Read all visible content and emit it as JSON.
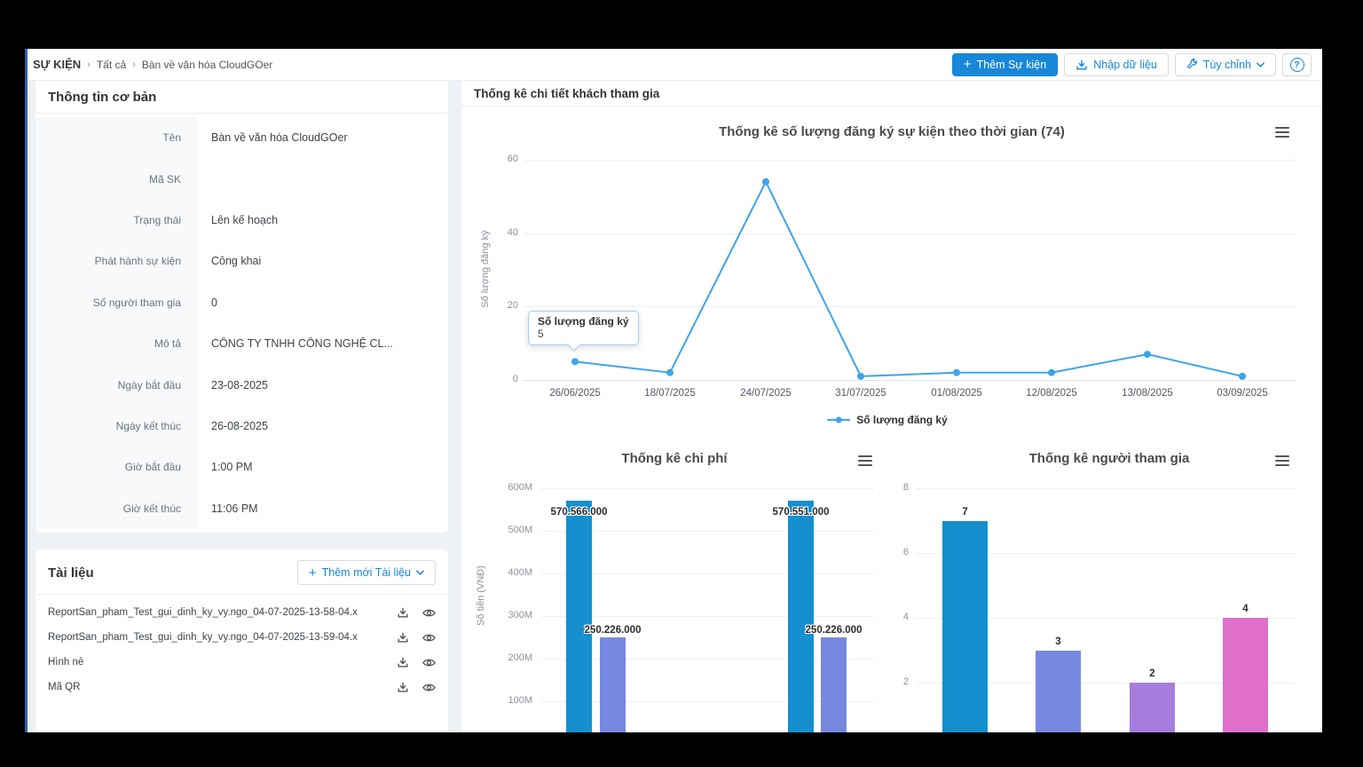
{
  "colors": {
    "primary": "#1787d9",
    "line_series": "#3da4ec",
    "bar_blue": "#158fce",
    "bar_periwinkle": "#7688e0",
    "bar_purple": "#a67ddd",
    "bar_pink": "#df6fcb",
    "icon_gray": "#555555",
    "sidebar_strip": "#2e5fae"
  },
  "breadcrumb": {
    "root": "SỰ KIỆN",
    "items": [
      "Tất cả",
      "Bàn về văn hóa CloudGOer"
    ]
  },
  "toolbar": {
    "add_event_label": "Thêm Sự kiện",
    "import_label": "Nhập dữ liệu",
    "customize_label": "Tùy chỉnh",
    "help_label": "?"
  },
  "info_panel": {
    "title": "Thông tin cơ bản",
    "fields": [
      {
        "label": "Tên",
        "value": "Bàn về văn hóa CloudGOer"
      },
      {
        "label": "Mã SK",
        "value": ""
      },
      {
        "label": "Trạng thái",
        "value": "Lên kế hoạch"
      },
      {
        "label": "Phát hành sự kiện",
        "value": "Công khai"
      },
      {
        "label": "Số người tham gia",
        "value": "0"
      },
      {
        "label": "Mô tả",
        "value": "CÔNG TY TNHH CÔNG NGHỆ CL..."
      },
      {
        "label": "Ngày bắt đầu",
        "value": "23-08-2025"
      },
      {
        "label": "Ngày kết thúc",
        "value": "26-08-2025"
      },
      {
        "label": "Giờ bắt đầu",
        "value": "1:00 PM"
      },
      {
        "label": "Giờ kết thúc",
        "value": "11:06 PM"
      }
    ]
  },
  "documents_panel": {
    "title": "Tài liệu",
    "add_button_label": "Thêm mới Tài liệu",
    "files": [
      {
        "name": "ReportSan_pham_Test_gui_dinh_ky_vy.ngo_04-07-2025-13-58-04.x"
      },
      {
        "name": "ReportSan_pham_Test_gui_dinh_ky_vy.ngo_04-07-2025-13-59-04.x"
      },
      {
        "name": "Hình nè"
      },
      {
        "name": "Mã QR"
      }
    ]
  },
  "stats_panel": {
    "title": "Thống kê chi tiết khách tham gia"
  },
  "chart_data": [
    {
      "type": "line",
      "title": "Thống kê số lượng đăng ký sự kiện theo thời gian (74)",
      "ylabel": "Số lượng đăng ký",
      "x": [
        "26/06/2025",
        "18/07/2025",
        "24/07/2025",
        "31/07/2025",
        "01/08/2025",
        "12/08/2025",
        "13/08/2025",
        "03/09/2025"
      ],
      "values": [
        5,
        2,
        54,
        1,
        2,
        2,
        7,
        1
      ],
      "ylim": [
        0,
        60
      ],
      "yticks": [
        0,
        20,
        40,
        60
      ],
      "grid": true,
      "legend": [
        "Số lượng đăng ký"
      ],
      "legend_position": "bottom",
      "tooltip": {
        "title": "Số lượng đăng ký",
        "value": "5",
        "anchor_x": "26/06/2025"
      }
    },
    {
      "type": "bar",
      "title": "Thống kê chi phí",
      "ylabel": "Số tiền (VNĐ)",
      "ylim": [
        0,
        600000000
      ],
      "yticks": [
        "600M",
        "500M",
        "400M",
        "300M",
        "200M",
        "100M"
      ],
      "grid": true,
      "groups": [
        {
          "bars": [
            {
              "label": "570.566.000",
              "value": 570566000,
              "color": "bar_blue"
            },
            {
              "label": "250.226.000",
              "value": 250226000,
              "color": "bar_periwinkle"
            }
          ]
        },
        {
          "bars": [
            {
              "label": "570.551.000",
              "value": 570551000,
              "color": "bar_blue"
            },
            {
              "label": "250.226.000",
              "value": 250226000,
              "color": "bar_periwinkle"
            }
          ]
        }
      ]
    },
    {
      "type": "bar",
      "title": "Thống kê người tham gia",
      "ylim": [
        0,
        8
      ],
      "yticks": [
        8,
        6,
        4,
        2
      ],
      "grid": true,
      "bars": [
        {
          "label": "7",
          "value": 7,
          "color": "bar_blue"
        },
        {
          "label": "3",
          "value": 3,
          "color": "bar_periwinkle"
        },
        {
          "label": "2",
          "value": 2,
          "color": "bar_purple"
        },
        {
          "label": "4",
          "value": 4,
          "color": "bar_pink"
        }
      ]
    }
  ]
}
